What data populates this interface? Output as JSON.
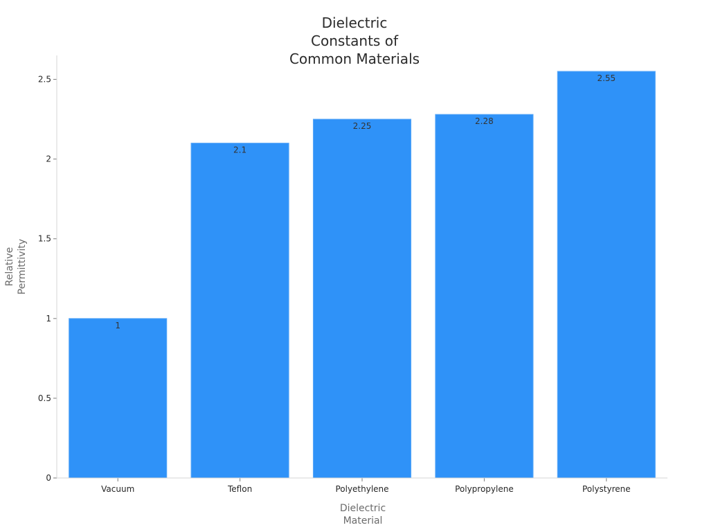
{
  "chart_data": {
    "type": "bar",
    "title": [
      "Dielectric",
      "Constants of",
      "Common Materials"
    ],
    "xlabel": [
      "Dielectric",
      "Material"
    ],
    "ylabel": [
      "Relative",
      "Permittivity"
    ],
    "categories": [
      "Vacuum",
      "Teflon",
      "Polyethylene",
      "Polypropylene",
      "Polystyrene"
    ],
    "values": [
      1,
      2.1,
      2.25,
      2.28,
      2.55
    ],
    "value_labels": [
      "1",
      "2.1",
      "2.25",
      "2.28",
      "2.55"
    ],
    "yticks": [
      0,
      0.5,
      1,
      1.5,
      2,
      2.5
    ],
    "ytick_labels": [
      "0",
      "0.5",
      "1",
      "1.5",
      "2",
      "2.5"
    ],
    "ylim": [
      0,
      2.65
    ],
    "grid": false,
    "legend": "none",
    "colors": {
      "bar": "#2f92f8",
      "bar_edge": "#5aa8f7"
    }
  }
}
